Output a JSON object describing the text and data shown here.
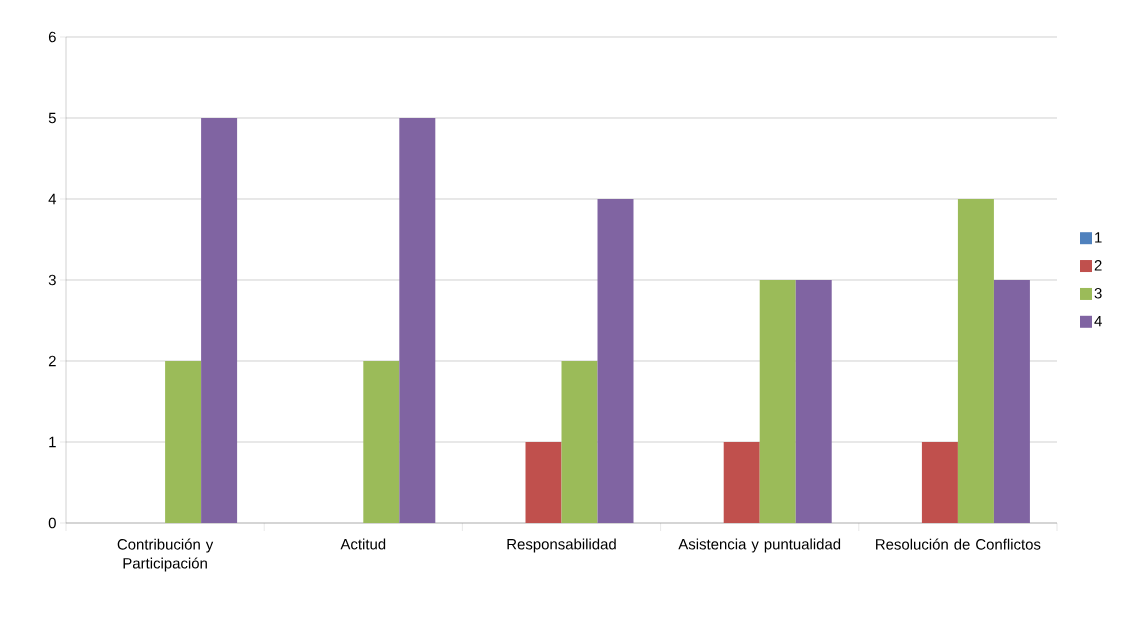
{
  "chart_data": {
    "type": "bar",
    "categories": [
      "Contribución y Participación",
      "Actitud",
      "Responsabilidad",
      "Asistencia y puntualidad",
      "Resolución de Conflictos"
    ],
    "series": [
      {
        "name": "1",
        "color": "#4f81bd",
        "values": [
          0,
          0,
          0,
          0,
          0
        ]
      },
      {
        "name": "2",
        "color": "#c0504d",
        "values": [
          0,
          0,
          1,
          1,
          1
        ]
      },
      {
        "name": "3",
        "color": "#9bbb59",
        "values": [
          2,
          2,
          2,
          3,
          4
        ]
      },
      {
        "name": "4",
        "color": "#8064a2",
        "values": [
          5,
          5,
          4,
          3,
          3
        ]
      }
    ],
    "ylim": [
      0,
      6
    ],
    "yticks": [
      0,
      1,
      2,
      3,
      4,
      5,
      6
    ],
    "grid": "y",
    "legend": "right"
  }
}
